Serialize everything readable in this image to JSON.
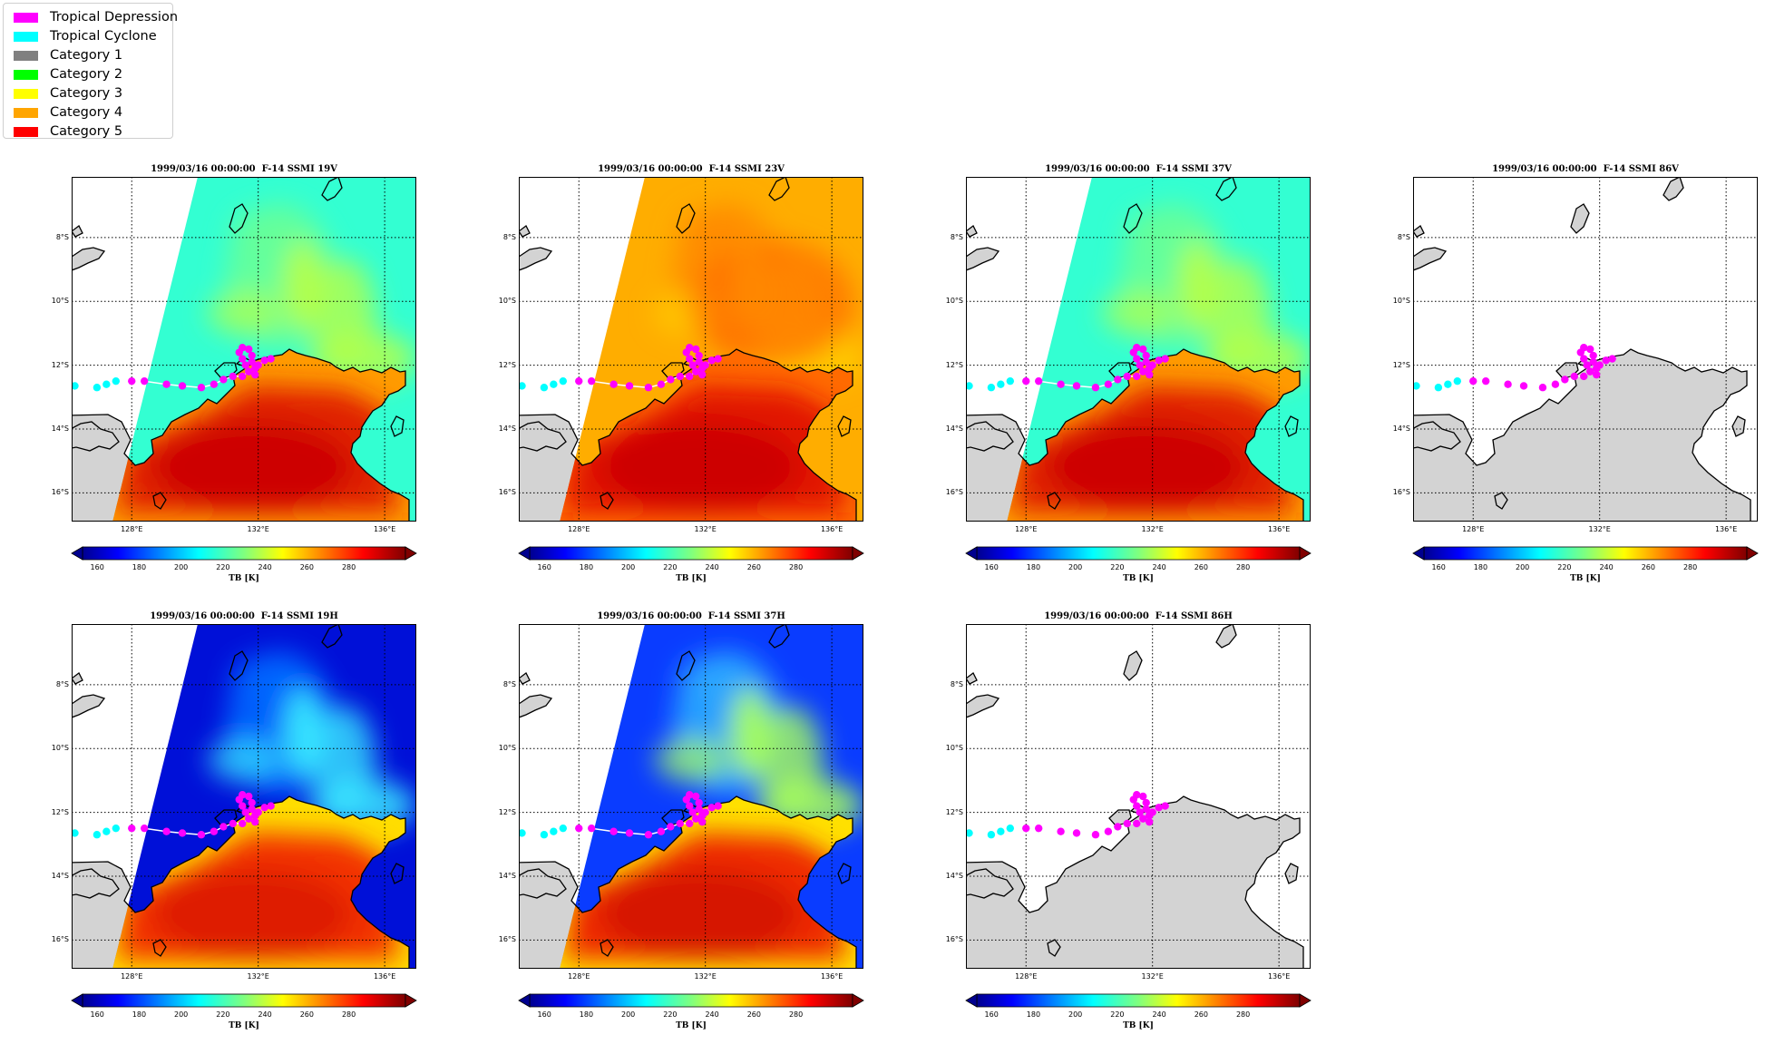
{
  "legend": {
    "items": [
      {
        "label": "Tropical Depression",
        "color": "#ff00ff"
      },
      {
        "label": "Tropical Cyclone",
        "color": "#00ffff"
      },
      {
        "label": "Category 1",
        "color": "#808080"
      },
      {
        "label": "Category 2",
        "color": "#00ff00"
      },
      {
        "label": "Category 3",
        "color": "#ffff00"
      },
      {
        "label": "Category 4",
        "color": "#ffa500"
      },
      {
        "label": "Category 5",
        "color": "#ff0000"
      }
    ]
  },
  "panels": [
    {
      "title": "1999/03/16 00:00:00  F-14 SSMI 19V",
      "field": "mid",
      "has_data": true
    },
    {
      "title": "1999/03/16 00:00:00  F-14 SSMI 23V",
      "field": "warm",
      "has_data": true
    },
    {
      "title": "1999/03/16 00:00:00  F-14 SSMI 37V",
      "field": "mid",
      "has_data": true
    },
    {
      "title": "1999/03/16 00:00:00  F-14 SSMI 86V",
      "field": "none",
      "has_data": false
    },
    {
      "title": "1999/03/16 00:00:00  F-14 SSMI 19H",
      "field": "cold",
      "has_data": true
    },
    {
      "title": "1999/03/16 00:00:00  F-14 SSMI 37H",
      "field": "cold2",
      "has_data": true
    },
    {
      "title": "1999/03/16 00:00:00  F-14 SSMI 86H",
      "field": "none",
      "has_data": false
    }
  ],
  "axes": {
    "lat_ticks": [
      "8°S",
      "10°S",
      "12°S",
      "14°S",
      "16°S"
    ],
    "lat_values": [
      -8,
      -10,
      -12,
      -14,
      -16
    ],
    "lon_ticks": [
      "128°E",
      "132°E",
      "136°E"
    ],
    "lon_values": [
      128,
      132,
      136
    ],
    "lon_range": [
      126.1,
      137.0
    ],
    "lat_range": [
      -16.9,
      -6.1
    ]
  },
  "colorbar": {
    "label": "TB [K]",
    "ticks": [
      "160",
      "180",
      "200",
      "220",
      "240",
      "260",
      "280"
    ],
    "tick_values": [
      160,
      180,
      200,
      220,
      240,
      260,
      280
    ],
    "range": [
      153,
      307
    ],
    "colormap": "jet",
    "extend": "both"
  },
  "track": {
    "points": [
      {
        "lon": 126.2,
        "lat": -12.65,
        "cat": "Tropical Cyclone"
      },
      {
        "lon": 126.9,
        "lat": -12.7,
        "cat": "Tropical Cyclone"
      },
      {
        "lon": 127.2,
        "lat": -12.6,
        "cat": "Tropical Cyclone"
      },
      {
        "lon": 127.5,
        "lat": -12.5,
        "cat": "Tropical Cyclone"
      },
      {
        "lon": 128.0,
        "lat": -12.5,
        "cat": "Tropical Depression"
      },
      {
        "lon": 128.4,
        "lat": -12.5,
        "cat": "Tropical Depression"
      },
      {
        "lon": 129.1,
        "lat": -12.6,
        "cat": "Tropical Depression"
      },
      {
        "lon": 129.6,
        "lat": -12.65,
        "cat": "Tropical Depression"
      },
      {
        "lon": 130.2,
        "lat": -12.7,
        "cat": "Tropical Depression"
      },
      {
        "lon": 130.6,
        "lat": -12.6,
        "cat": "Tropical Depression"
      },
      {
        "lon": 130.9,
        "lat": -12.45,
        "cat": "Tropical Depression"
      },
      {
        "lon": 131.2,
        "lat": -12.35,
        "cat": "Tropical Depression"
      },
      {
        "lon": 131.5,
        "lat": -12.35,
        "cat": "Tropical Depression"
      },
      {
        "lon": 131.7,
        "lat": -12.2,
        "cat": "Tropical Depression"
      },
      {
        "lon": 131.6,
        "lat": -12.0,
        "cat": "Tropical Depression"
      },
      {
        "lon": 131.5,
        "lat": -11.8,
        "cat": "Tropical Depression"
      },
      {
        "lon": 131.4,
        "lat": -11.6,
        "cat": "Tropical Depression"
      },
      {
        "lon": 131.5,
        "lat": -11.45,
        "cat": "Tropical Depression"
      },
      {
        "lon": 131.7,
        "lat": -11.5,
        "cat": "Tropical Depression"
      },
      {
        "lon": 131.8,
        "lat": -11.7,
        "cat": "Tropical Depression"
      },
      {
        "lon": 131.8,
        "lat": -11.9,
        "cat": "Tropical Depression"
      },
      {
        "lon": 131.9,
        "lat": -12.1,
        "cat": "Tropical Depression"
      },
      {
        "lon": 131.9,
        "lat": -12.3,
        "cat": "Tropical Depression"
      },
      {
        "lon": 132.0,
        "lat": -12.0,
        "cat": "Tropical Depression"
      },
      {
        "lon": 132.2,
        "lat": -11.85,
        "cat": "Tropical Depression"
      },
      {
        "lon": 132.4,
        "lat": -11.8,
        "cat": "Tropical Depression"
      }
    ]
  },
  "colors": {
    "land": "#d3d3d3",
    "coast": "#000000",
    "track_line": "#ffffff"
  }
}
